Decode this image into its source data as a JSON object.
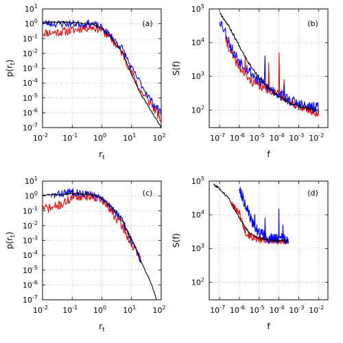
{
  "chart_data": [
    {
      "panel": "a",
      "type": "line",
      "label": "(a)",
      "xlabel": "r_t",
      "ylabel": "p(r_t)",
      "xscale": "log",
      "yscale": "log",
      "xlim": [
        0.01,
        100
      ],
      "ylim": [
        1e-07,
        10
      ],
      "xticks": [
        0.01,
        0.1,
        1,
        10,
        100
      ],
      "yticks": [
        1e-07,
        1e-06,
        1e-05,
        0.0001,
        0.001,
        0.01,
        0.1,
        1,
        10
      ],
      "grid": true,
      "series": [
        {
          "color": "#ff0000",
          "noise": 0.3,
          "seed": 11,
          "x": [
            0.01,
            0.02,
            0.05,
            0.1,
            0.2,
            0.5,
            1,
            2,
            5,
            10,
            20,
            50,
            100
          ],
          "y": [
            0.25,
            0.25,
            0.3,
            0.35,
            0.5,
            0.6,
            0.4,
            0.1,
            0.01,
            0.0005,
            3e-05,
            3e-06,
            3e-07
          ]
        },
        {
          "color": "#0000ff",
          "noise": 0.25,
          "seed": 23,
          "x": [
            0.01,
            0.02,
            0.05,
            0.1,
            0.2,
            0.5,
            1,
            2,
            5,
            10,
            20,
            50,
            100
          ],
          "y": [
            1.2,
            1.0,
            1.0,
            1.0,
            1.0,
            1.0,
            0.5,
            0.15,
            0.02,
            0.001,
            0.0001,
            5e-06,
            1e-06
          ]
        },
        {
          "color": "#000000",
          "noise": 0.05,
          "seed": 37,
          "x": [
            0.01,
            0.05,
            0.1,
            0.2,
            0.5,
            1,
            2,
            5,
            10,
            20,
            50,
            100
          ],
          "y": [
            1.3,
            1.3,
            1.25,
            1.1,
            0.9,
            0.5,
            0.12,
            0.01,
            0.0004,
            2e-05,
            1e-06,
            1e-07
          ]
        }
      ]
    },
    {
      "panel": "b",
      "type": "line",
      "label": "(b)",
      "xlabel": "f",
      "ylabel": "S(f)",
      "xscale": "log",
      "yscale": "log",
      "xlim": [
        3e-08,
        0.03
      ],
      "ylim": [
        30,
        100000
      ],
      "xticks": [
        1e-07,
        1e-06,
        1e-05,
        0.0001,
        0.001,
        0.01
      ],
      "yticks": [
        100,
        1000,
        10000,
        100000
      ],
      "grid": true,
      "series": [
        {
          "color": "#ff0000",
          "noise": 0.12,
          "seed": 41,
          "x": [
            2e-07,
            5e-07,
            1e-06,
            3e-06,
            1e-05,
            3e-05,
            0.0001,
            0.0003,
            0.001,
            0.003,
            0.01
          ],
          "y": [
            12000,
            3500,
            1800,
            800,
            500,
            400,
            300,
            180,
            130,
            100,
            75
          ],
          "spikes": [
            [
              2e-06,
              4000
            ],
            [
              3e-05,
              2500
            ],
            [
              0.0001,
              5000
            ],
            [
              0.00018,
              800
            ]
          ]
        },
        {
          "color": "#0000ff",
          "noise": 0.18,
          "seed": 53,
          "x": [
            1e-07,
            2e-07,
            5e-07,
            1e-06,
            3e-06,
            1e-05,
            3e-05,
            0.0001,
            0.0003,
            0.001,
            0.003,
            0.01
          ],
          "y": [
            50000,
            20000,
            5000,
            3000,
            1500,
            700,
            450,
            300,
            200,
            150,
            120,
            110
          ],
          "spikes": [
            [
              2e-05,
              4000
            ],
            [
              0.00018,
              600
            ]
          ]
        },
        {
          "color": "#000000",
          "noise": 0.04,
          "seed": 67,
          "x": [
            1e-07,
            3e-07,
            1e-06,
            3e-06,
            1e-05,
            3e-05,
            0.0001,
            0.0003,
            0.001,
            0.003,
            0.01
          ],
          "y": [
            80000,
            30000,
            8000,
            2500,
            900,
            450,
            250,
            170,
            130,
            110,
            90
          ]
        }
      ]
    },
    {
      "panel": "c",
      "type": "line",
      "label": "(c)",
      "xlabel": "r_t",
      "ylabel": "p(r_t)",
      "xscale": "log",
      "yscale": "log",
      "xlim": [
        0.01,
        100
      ],
      "ylim": [
        1e-07,
        10
      ],
      "xticks": [
        0.01,
        0.1,
        1,
        10,
        100
      ],
      "yticks": [
        1e-07,
        1e-06,
        1e-05,
        0.0001,
        0.001,
        0.01,
        0.1,
        1,
        10
      ],
      "grid": true,
      "series": [
        {
          "color": "#ff0000",
          "noise": 0.3,
          "seed": 71,
          "x": [
            0.01,
            0.02,
            0.05,
            0.1,
            0.2,
            0.5,
            1,
            2,
            5,
            10,
            20
          ],
          "y": [
            0.15,
            0.15,
            0.3,
            0.8,
            1.0,
            1.0,
            0.5,
            0.1,
            0.008,
            0.0005,
            5e-05
          ]
        },
        {
          "color": "#0000ff",
          "noise": 0.25,
          "seed": 83,
          "x": [
            0.02,
            0.05,
            0.1,
            0.2,
            0.5,
            1,
            2,
            5,
            10,
            20
          ],
          "y": [
            1.0,
            1.5,
            2.0,
            1.5,
            1.2,
            0.6,
            0.2,
            0.02,
            0.001,
            5e-05
          ]
        },
        {
          "color": "#000000",
          "noise": 0.05,
          "seed": 97,
          "x": [
            0.01,
            0.05,
            0.1,
            0.2,
            0.5,
            1,
            2,
            5,
            10,
            20,
            50,
            70
          ],
          "y": [
            1.2,
            1.3,
            1.4,
            1.4,
            1.2,
            0.7,
            0.2,
            0.02,
            0.0012,
            5e-05,
            8e-07,
            1e-07
          ]
        }
      ]
    },
    {
      "panel": "d",
      "type": "line",
      "label": "(d)",
      "xlabel": "f",
      "ylabel": "S(f)",
      "xscale": "log",
      "yscale": "log",
      "xlim": [
        3e-08,
        0.03
      ],
      "ylim": [
        30,
        100000
      ],
      "xticks": [
        1e-07,
        1e-06,
        1e-05,
        0.0001,
        0.001,
        0.01
      ],
      "yticks": [
        100,
        1000,
        10000,
        100000
      ],
      "grid": true,
      "series": [
        {
          "color": "#ff0000",
          "noise": 0.1,
          "seed": 101,
          "x": [
            4e-07,
            1e-06,
            2e-06,
            5e-06,
            1e-05,
            3e-05,
            0.0001,
            0.0003
          ],
          "y": [
            20000,
            12000,
            3000,
            2000,
            1800,
            1700,
            1600,
            1600
          ],
          "spikes": [
            [
              2e-05,
              5000
            ]
          ]
        },
        {
          "color": "#0000ff",
          "noise": 0.15,
          "seed": 113,
          "x": [
            1e-06,
            2e-06,
            5e-06,
            1e-05,
            3e-05,
            0.0001,
            0.0003
          ],
          "y": [
            60000,
            20000,
            5000,
            3000,
            2000,
            2000,
            1900
          ],
          "spikes": [
            [
              6e-06,
              10000
            ],
            [
              2e-05,
              8000
            ],
            [
              0.0001,
              15000
            ],
            [
              0.00016,
              5000
            ]
          ]
        },
        {
          "color": "#000000",
          "noise": 0.03,
          "seed": 127,
          "x": [
            5e-08,
            1e-07,
            3e-07,
            1e-06,
            3e-06,
            1e-05,
            3e-05,
            0.0001,
            0.0003
          ],
          "y": [
            80000,
            60000,
            30000,
            8000,
            3000,
            2000,
            1800,
            1700,
            1700
          ]
        }
      ]
    }
  ]
}
